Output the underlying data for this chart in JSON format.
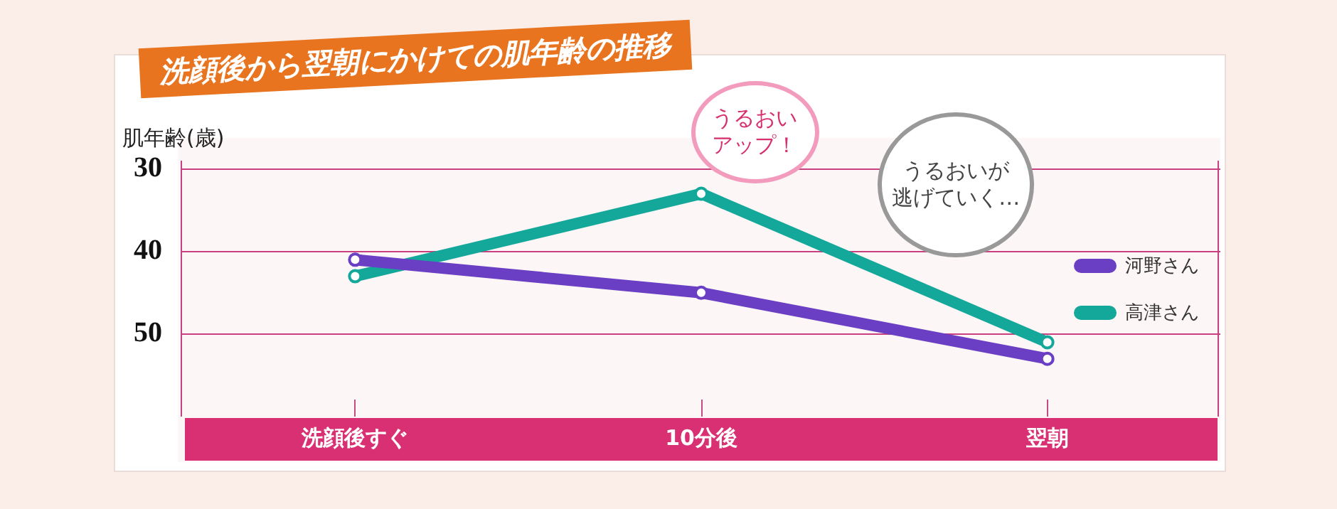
{
  "chart_data": {
    "type": "line",
    "title": "洗顔後から翌朝にかけての肌年齢の推移",
    "ylabel": "肌年齢(歳)",
    "categories": [
      "洗顔後すぐ",
      "10分後",
      "翌朝"
    ],
    "series": [
      {
        "name": "河野さん",
        "color": "#6a3fc4",
        "values": [
          41,
          45,
          53
        ]
      },
      {
        "name": "高津さん",
        "color": "#13a89a",
        "values": [
          43,
          33,
          51
        ]
      }
    ],
    "ylim": [
      60,
      29
    ],
    "yticks": [
      30,
      40,
      50
    ],
    "grid": "y",
    "legend": "right",
    "marker": "circle",
    "line_style": "solid",
    "annotations": [
      "うるおいアップ！",
      "うるおいが",
      "逃げていく…"
    ]
  }
}
